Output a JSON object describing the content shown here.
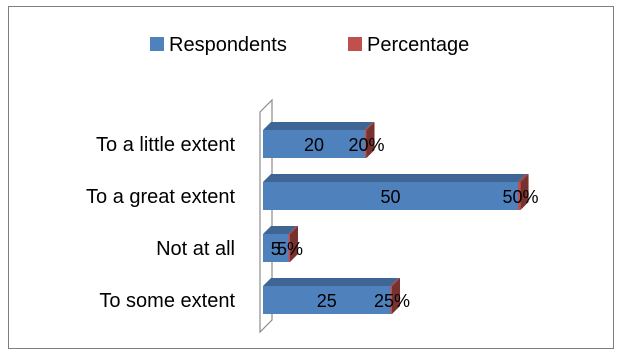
{
  "chart_data": {
    "type": "bar",
    "orientation": "horizontal",
    "style": "3d-stacked",
    "categories": [
      "To some extent",
      "Not at all",
      "To a great extent",
      "To a little extent"
    ],
    "series": [
      {
        "name": "Respondents",
        "values": [
          25,
          5,
          50,
          20
        ],
        "labels": [
          "25",
          "5",
          "50",
          "20"
        ],
        "color": "#4f81bd"
      },
      {
        "name": "Percentage",
        "values": [
          0.25,
          0.05,
          0.5,
          0.2
        ],
        "labels": [
          "25%",
          "5%",
          "50%",
          "20%"
        ],
        "color": "#c0504d"
      }
    ],
    "legend": "top",
    "xlim": [
      0,
      55
    ],
    "grid": false
  }
}
